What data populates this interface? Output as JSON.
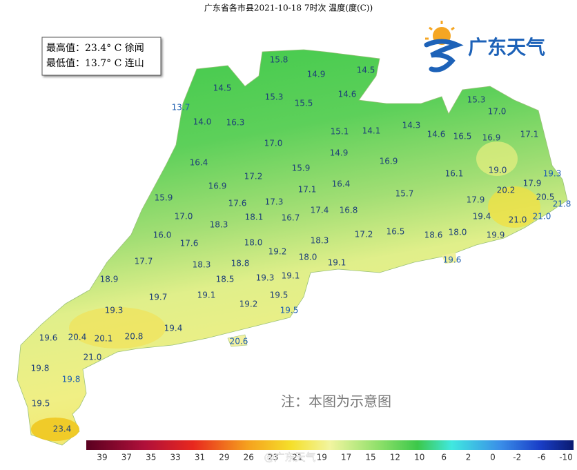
{
  "title": "广东省各市县2021-10-18 7时次 温度(度(C))",
  "info_box": {
    "max": "最高值：23.4° C 徐闻",
    "min": "最低值：13.7° C 连山"
  },
  "logo": {
    "text": "广东天气"
  },
  "note": "注：本图为示意图",
  "watermark": "@广东天气",
  "map_labels": [
    "15.8",
    "14.9",
    "14.5",
    "14.5",
    "15.3",
    "15.5",
    "14.6",
    "15.3",
    "17.0",
    "13.7",
    "14.0",
    "16.3",
    "15.1",
    "14.1",
    "14.3",
    "14.6",
    "16.5",
    "16.9",
    "17.1",
    "17.0",
    "14.9",
    "16.4",
    "15.9",
    "16.9",
    "16.1",
    "19.0",
    "19.3",
    "17.2",
    "16.9",
    "17.1",
    "16.4",
    "20.2",
    "17.9",
    "15.9",
    "17.6",
    "17.3",
    "15.7",
    "17.9",
    "20.5",
    "21.8",
    "17.0",
    "18.1",
    "16.7",
    "17.4",
    "16.8",
    "19.4",
    "21.0",
    "21.0",
    "18.3",
    "16.0",
    "17.6",
    "18.0",
    "17.2",
    "16.5",
    "18.3",
    "18.6",
    "18.0",
    "19.9",
    "19.2",
    "18.0",
    "19.6",
    "17.7",
    "18.3",
    "18.8",
    "19.1",
    "18.9",
    "18.5",
    "19.3",
    "19.1",
    "19.7",
    "19.1",
    "19.5",
    "19.3",
    "19.2",
    "19.5",
    "19.4",
    "19.6",
    "20.4",
    "20.1",
    "20.8",
    "20.6",
    "21.0",
    "19.8",
    "19.8",
    "19.5",
    "23.4"
  ],
  "legend": {
    "labels": [
      39,
      37,
      35,
      33,
      31,
      29,
      26,
      23,
      21,
      19,
      17,
      15,
      12,
      10,
      6,
      2,
      0,
      -2,
      -6,
      -10
    ]
  }
}
